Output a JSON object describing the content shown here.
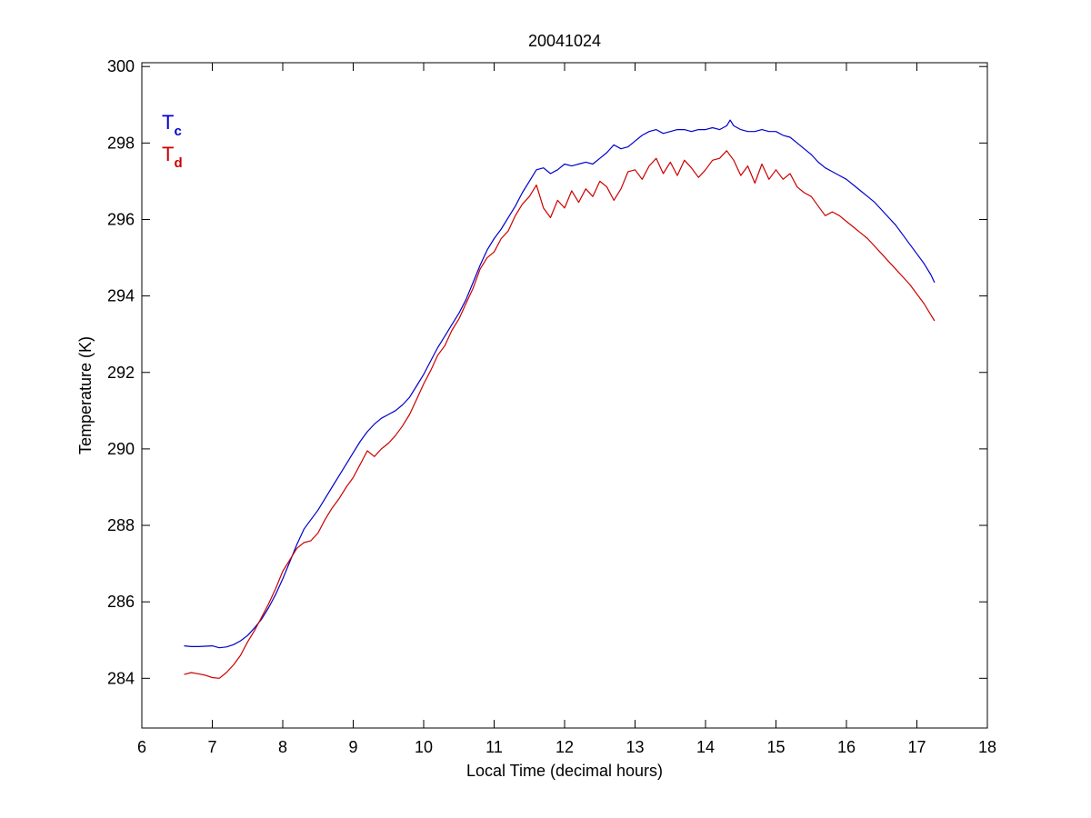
{
  "chart_data": {
    "type": "line",
    "title": "20041024",
    "xlabel": "Local Time (decimal hours)",
    "ylabel": "Temperature (K)",
    "xlim": [
      6,
      18
    ],
    "ylim": [
      282.7,
      300.1
    ],
    "xticks": [
      6,
      7,
      8,
      9,
      10,
      11,
      12,
      13,
      14,
      15,
      16,
      17,
      18
    ],
    "yticks": [
      284,
      286,
      288,
      290,
      292,
      294,
      296,
      298,
      300
    ],
    "grid": false,
    "legend": {
      "placement": "top-left",
      "entries": [
        {
          "main": "T",
          "sub": "c",
          "color": "#0000cc"
        },
        {
          "main": "T",
          "sub": "d",
          "color": "#cc0000"
        }
      ]
    },
    "series": [
      {
        "color": "#0000cc",
        "x": [
          6.6,
          6.7,
          6.8,
          6.9,
          7.0,
          7.1,
          7.2,
          7.3,
          7.4,
          7.5,
          7.6,
          7.7,
          7.8,
          7.9,
          8.0,
          8.1,
          8.2,
          8.3,
          8.4,
          8.5,
          8.6,
          8.7,
          8.8,
          8.9,
          9.0,
          9.1,
          9.2,
          9.3,
          9.4,
          9.5,
          9.6,
          9.7,
          9.8,
          9.9,
          10.0,
          10.1,
          10.2,
          10.3,
          10.4,
          10.5,
          10.6,
          10.7,
          10.8,
          10.9,
          11.0,
          11.1,
          11.2,
          11.3,
          11.4,
          11.5,
          11.6,
          11.7,
          11.8,
          11.9,
          12.0,
          12.1,
          12.2,
          12.3,
          12.4,
          12.5,
          12.6,
          12.7,
          12.8,
          12.9,
          13.0,
          13.1,
          13.2,
          13.3,
          13.4,
          13.5,
          13.6,
          13.7,
          13.8,
          13.9,
          14.0,
          14.1,
          14.2,
          14.3,
          14.35,
          14.4,
          14.5,
          14.6,
          14.7,
          14.8,
          14.9,
          15.0,
          15.1,
          15.2,
          15.3,
          15.4,
          15.5,
          15.6,
          15.7,
          15.8,
          15.9,
          16.0,
          16.1,
          16.2,
          16.3,
          16.4,
          16.5,
          16.6,
          16.7,
          16.8,
          16.9,
          17.0,
          17.1,
          17.2,
          17.25
        ],
        "y": [
          284.85,
          284.83,
          284.83,
          284.84,
          284.85,
          284.8,
          284.82,
          284.88,
          284.98,
          285.12,
          285.32,
          285.55,
          285.85,
          286.2,
          286.6,
          287.05,
          287.5,
          287.9,
          288.15,
          288.4,
          288.7,
          289.0,
          289.3,
          289.6,
          289.9,
          290.2,
          290.45,
          290.65,
          290.8,
          290.9,
          291.0,
          291.15,
          291.35,
          291.65,
          291.95,
          292.3,
          292.65,
          292.95,
          293.25,
          293.55,
          293.9,
          294.35,
          294.8,
          295.2,
          295.5,
          295.75,
          296.05,
          296.35,
          296.7,
          297.0,
          297.3,
          297.35,
          297.2,
          297.3,
          297.45,
          297.4,
          297.45,
          297.5,
          297.45,
          297.6,
          297.75,
          297.95,
          297.85,
          297.9,
          298.05,
          298.2,
          298.3,
          298.35,
          298.25,
          298.3,
          298.35,
          298.35,
          298.3,
          298.35,
          298.35,
          298.4,
          298.35,
          298.45,
          298.6,
          298.45,
          298.35,
          298.3,
          298.3,
          298.35,
          298.3,
          298.3,
          298.2,
          298.15,
          298.0,
          297.85,
          297.7,
          297.5,
          297.35,
          297.25,
          297.15,
          297.05,
          296.9,
          296.75,
          296.6,
          296.45,
          296.25,
          296.05,
          295.85,
          295.6,
          295.35,
          295.1,
          294.85,
          294.55,
          294.35
        ]
      },
      {
        "color": "#cc0000",
        "x": [
          6.6,
          6.7,
          6.8,
          6.9,
          7.0,
          7.1,
          7.2,
          7.3,
          7.4,
          7.5,
          7.6,
          7.7,
          7.8,
          7.9,
          8.0,
          8.1,
          8.2,
          8.3,
          8.4,
          8.5,
          8.6,
          8.7,
          8.8,
          8.9,
          9.0,
          9.1,
          9.2,
          9.3,
          9.4,
          9.5,
          9.6,
          9.7,
          9.8,
          9.9,
          10.0,
          10.1,
          10.2,
          10.3,
          10.4,
          10.5,
          10.6,
          10.7,
          10.8,
          10.9,
          11.0,
          11.1,
          11.2,
          11.3,
          11.4,
          11.5,
          11.6,
          11.7,
          11.8,
          11.9,
          12.0,
          12.1,
          12.2,
          12.3,
          12.4,
          12.5,
          12.6,
          12.7,
          12.8,
          12.9,
          13.0,
          13.1,
          13.2,
          13.3,
          13.4,
          13.5,
          13.6,
          13.7,
          13.8,
          13.9,
          14.0,
          14.1,
          14.2,
          14.3,
          14.4,
          14.5,
          14.6,
          14.7,
          14.8,
          14.9,
          15.0,
          15.1,
          15.2,
          15.3,
          15.4,
          15.5,
          15.6,
          15.7,
          15.8,
          15.9,
          16.0,
          16.1,
          16.2,
          16.3,
          16.4,
          16.5,
          16.6,
          16.7,
          16.8,
          16.9,
          17.0,
          17.1,
          17.2,
          17.25
        ],
        "y": [
          284.1,
          284.15,
          284.12,
          284.08,
          284.02,
          284.0,
          284.15,
          284.35,
          284.6,
          284.95,
          285.25,
          285.6,
          285.95,
          286.35,
          286.8,
          287.1,
          287.4,
          287.55,
          287.6,
          287.8,
          288.15,
          288.45,
          288.7,
          289.0,
          289.25,
          289.6,
          289.95,
          289.8,
          290.0,
          290.15,
          290.35,
          290.6,
          290.9,
          291.3,
          291.7,
          292.05,
          292.45,
          292.7,
          293.1,
          293.4,
          293.8,
          294.2,
          294.7,
          295.0,
          295.15,
          295.5,
          295.7,
          296.1,
          296.4,
          296.6,
          296.9,
          296.3,
          296.05,
          296.5,
          296.3,
          296.75,
          296.45,
          296.8,
          296.6,
          297.0,
          296.85,
          296.5,
          296.8,
          297.25,
          297.3,
          297.05,
          297.4,
          297.6,
          297.2,
          297.5,
          297.15,
          297.55,
          297.35,
          297.1,
          297.3,
          297.55,
          297.6,
          297.8,
          297.55,
          297.15,
          297.4,
          296.95,
          297.45,
          297.05,
          297.3,
          297.05,
          297.2,
          296.85,
          296.7,
          296.6,
          296.35,
          296.1,
          296.2,
          296.1,
          295.95,
          295.8,
          295.65,
          295.5,
          295.3,
          295.1,
          294.9,
          294.7,
          294.5,
          294.3,
          294.05,
          293.8,
          293.5,
          293.35
        ]
      }
    ]
  }
}
